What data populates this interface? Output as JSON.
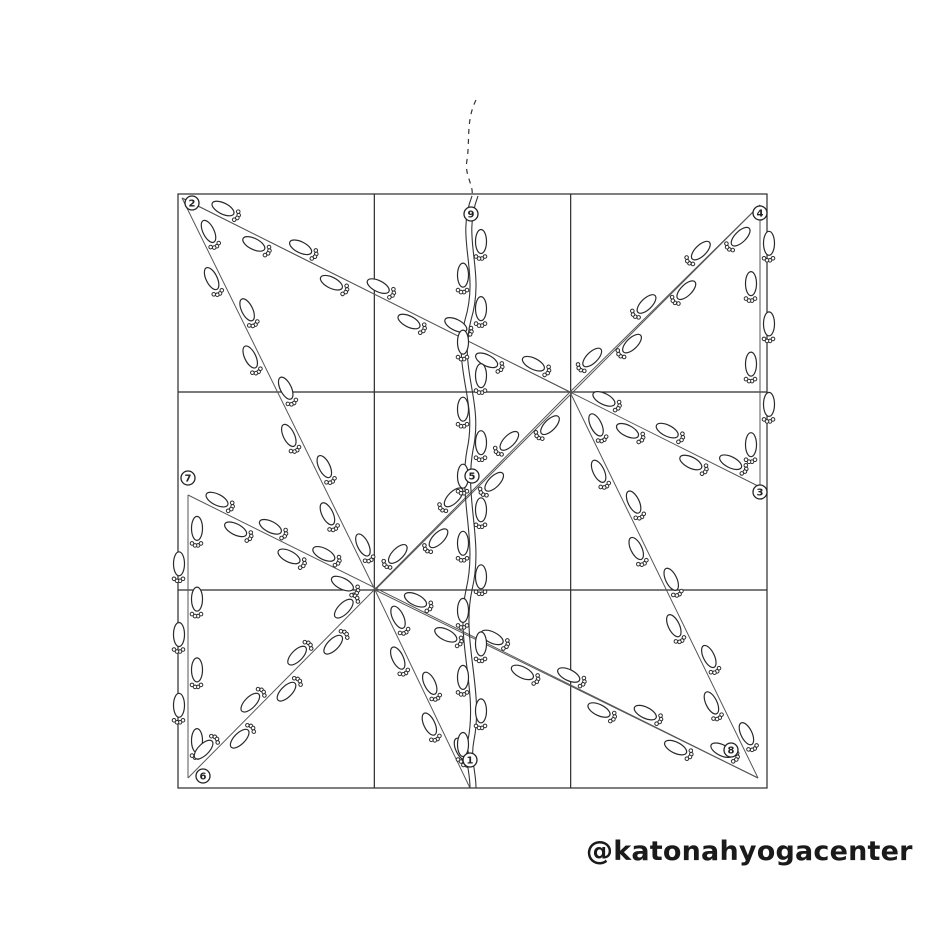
{
  "credit": "@katonahyogacenter",
  "grid": {
    "rows": 3,
    "cols": 3
  },
  "colors": {
    "ink": "#2a2a2a",
    "paper": "#ffffff"
  },
  "markers": [
    "1",
    "2",
    "3",
    "4",
    "5",
    "6",
    "7",
    "8",
    "9"
  ],
  "icons": [
    "footprint-icon",
    "dashed-path",
    "wavy-path"
  ]
}
